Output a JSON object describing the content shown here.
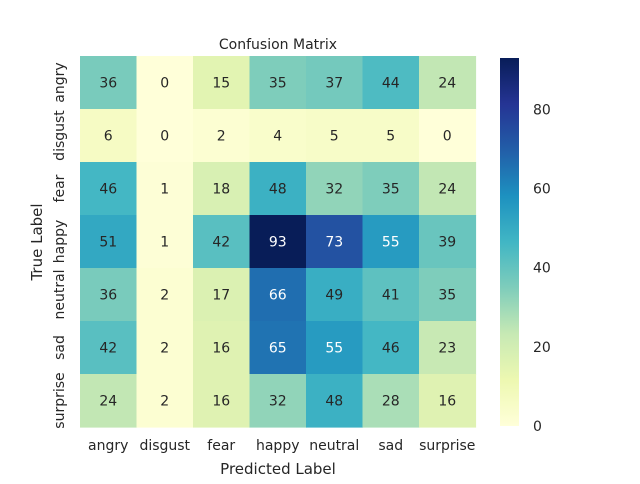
{
  "chart_data": {
    "type": "heatmap",
    "title": "Confusion Matrix",
    "xlabel": "Predicted Label",
    "ylabel": "True Label",
    "x_categories": [
      "angry",
      "disgust",
      "fear",
      "happy",
      "neutral",
      "sad",
      "surprise"
    ],
    "y_categories": [
      "angry",
      "disgust",
      "fear",
      "happy",
      "neutral",
      "sad",
      "surprise"
    ],
    "values": [
      [
        36,
        0,
        15,
        35,
        37,
        44,
        24
      ],
      [
        6,
        0,
        2,
        4,
        5,
        5,
        0
      ],
      [
        46,
        1,
        18,
        48,
        32,
        35,
        24
      ],
      [
        51,
        1,
        42,
        93,
        73,
        55,
        39
      ],
      [
        36,
        2,
        17,
        66,
        49,
        41,
        35
      ],
      [
        42,
        2,
        16,
        65,
        55,
        46,
        23
      ],
      [
        24,
        2,
        16,
        32,
        48,
        28,
        16
      ]
    ],
    "vmin": 0,
    "vmax": 93,
    "colormap": "YlGnBu",
    "colorbar_ticks": [
      0,
      20,
      40,
      60,
      80
    ],
    "annotations": true
  }
}
